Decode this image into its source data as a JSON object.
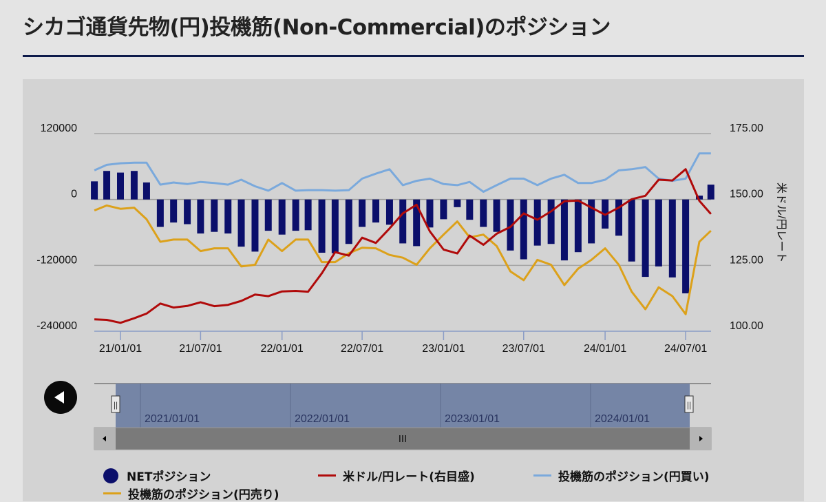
{
  "page": {
    "title": "シカゴ通貨先物(円)投機筋(Non-Commercial)のポジション"
  },
  "colors": {
    "net": "#0b0f6b",
    "usdjpy": "#b00a0a",
    "long": "#7aa9dc",
    "short": "#dca11a",
    "accent_rule": "#0d1a4a"
  },
  "navigator": {
    "labels": [
      "2021/01/01",
      "2022/01/01",
      "2023/01/01",
      "2024/01/01"
    ],
    "handle_icon": "grip-icon",
    "scroll_icon": "scroll-grip-icon"
  },
  "back_button": {
    "icon": "arrow-left-icon"
  },
  "chart_data": {
    "type": "bar+line",
    "left_axis": {
      "ylim": [
        -240000,
        120000
      ],
      "ticks": [
        "120000",
        "0",
        "-120000",
        "-240000"
      ]
    },
    "right_axis": {
      "ylim": [
        100,
        175
      ],
      "ticks": [
        "175.00",
        "150.00",
        "125.00",
        "100.00"
      ],
      "label": "米ドル/円レート"
    },
    "x_ticks": [
      "21/01/01",
      "21/07/01",
      "22/01/01",
      "22/07/01",
      "23/01/01",
      "23/07/01",
      "24/01/01",
      "24/07/01"
    ],
    "grid": true,
    "legend_position": "bottom",
    "x": [
      "2020-11-03",
      "2020-12-01",
      "2021-01-01",
      "2021-02-01",
      "2021-03-01",
      "2021-04-01",
      "2021-05-01",
      "2021-06-01",
      "2021-07-01",
      "2021-08-01",
      "2021-09-01",
      "2021-10-01",
      "2021-11-01",
      "2021-12-01",
      "2022-01-01",
      "2022-02-01",
      "2022-03-01",
      "2022-04-01",
      "2022-05-01",
      "2022-06-01",
      "2022-07-01",
      "2022-08-01",
      "2022-09-01",
      "2022-10-01",
      "2022-11-01",
      "2022-12-01",
      "2023-01-01",
      "2023-02-01",
      "2023-03-01",
      "2023-04-01",
      "2023-05-01",
      "2023-06-01",
      "2023-07-01",
      "2023-08-01",
      "2023-09-01",
      "2023-10-01",
      "2023-11-01",
      "2023-12-01",
      "2024-01-01",
      "2024-02-01",
      "2024-03-01",
      "2024-04-01",
      "2024-05-01",
      "2024-06-01",
      "2024-07-01",
      "2024-08-01",
      "2024-08-27"
    ],
    "series": [
      {
        "name": "NETポジション",
        "type": "bar",
        "axis": "left",
        "values": [
          33000,
          52000,
          49000,
          52000,
          31000,
          -50000,
          -42000,
          -45000,
          -62000,
          -59000,
          -62000,
          -86000,
          -95000,
          -57000,
          -64000,
          -57000,
          -56000,
          -97000,
          -98000,
          -81000,
          -50000,
          -42000,
          -46000,
          -80000,
          -85000,
          -51000,
          -36000,
          -14000,
          -37000,
          -50000,
          -59000,
          -93000,
          -109000,
          -84000,
          -81000,
          -111000,
          -96000,
          -80000,
          -53000,
          -66000,
          -113000,
          -141000,
          -122000,
          -142000,
          -171000,
          7000,
          27000
        ]
      },
      {
        "name": "米ドル/円レート(右目盛)",
        "type": "line",
        "axis": "right",
        "values": [
          104.5,
          104.3,
          103.2,
          104.9,
          106.7,
          110.5,
          109.0,
          109.6,
          111.0,
          109.5,
          110.0,
          111.5,
          113.9,
          113.3,
          115.1,
          115.3,
          115.0,
          122.0,
          130.0,
          128.7,
          135.5,
          133.5,
          139.0,
          144.7,
          148.0,
          137.9,
          131.0,
          129.5,
          136.3,
          132.8,
          137.0,
          139.6,
          144.7,
          142.3,
          145.5,
          149.3,
          149.6,
          146.9,
          144.2,
          146.9,
          150.1,
          151.4,
          157.5,
          157.2,
          161.5,
          149.5,
          144.5
        ]
      },
      {
        "name": "投機筋のポジション(円買い)",
        "type": "line",
        "axis": "left",
        "values": [
          53000,
          63000,
          66000,
          67000,
          67000,
          27000,
          31000,
          28000,
          32000,
          30000,
          27000,
          36000,
          24000,
          16000,
          30000,
          16000,
          17000,
          17000,
          16000,
          17000,
          38000,
          47000,
          55000,
          26000,
          34000,
          38000,
          28000,
          26000,
          32000,
          14000,
          26000,
          38000,
          38000,
          26000,
          38000,
          45000,
          30000,
          30000,
          36000,
          53000,
          55000,
          59000,
          38000,
          34000,
          38000,
          84000,
          84000
        ]
      },
      {
        "name": "投機筋のポジション(円売り)",
        "type": "line",
        "axis": "left",
        "values": [
          -20000,
          -11000,
          -17000,
          -15000,
          -36000,
          -77000,
          -73000,
          -73000,
          -94000,
          -89000,
          -89000,
          -122000,
          -119000,
          -73000,
          -94000,
          -73000,
          -73000,
          -114000,
          -114000,
          -98000,
          -88000,
          -89000,
          -101000,
          -106000,
          -119000,
          -89000,
          -64000,
          -40000,
          -69000,
          -64000,
          -85000,
          -131000,
          -147000,
          -110000,
          -119000,
          -156000,
          -126000,
          -110000,
          -89000,
          -119000,
          -168000,
          -200000,
          -160000,
          -176000,
          -209000,
          -77000,
          -57000
        ]
      }
    ]
  }
}
